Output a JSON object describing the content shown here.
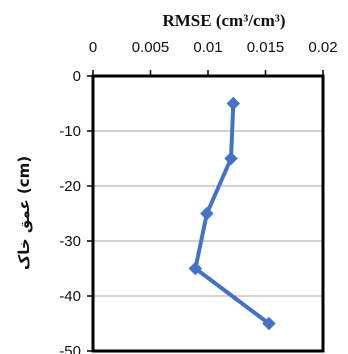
{
  "chart_data": {
    "type": "line",
    "xlabel": "RMSE (cm³/cm³)",
    "ylabel": "عمق خاک (cm)",
    "xlim": [
      0,
      0.02
    ],
    "ylim": [
      -50,
      0
    ],
    "x_axis_position": "top",
    "x_ticks": [
      "0",
      "0.005",
      "0.01",
      "0.015",
      "0.02"
    ],
    "y_ticks": [
      "0",
      "-10",
      "-20",
      "-30",
      "-40",
      "-50"
    ],
    "grid": "horizontal",
    "series_color": "#4472c4",
    "marker": "diamond",
    "series": [
      {
        "points": [
          {
            "x": 0.0122,
            "y": -5
          },
          {
            "x": 0.012,
            "y": -15
          },
          {
            "x": 0.0099,
            "y": -25
          },
          {
            "x": 0.0089,
            "y": -35
          },
          {
            "x": 0.0153,
            "y": -45
          }
        ]
      }
    ]
  }
}
